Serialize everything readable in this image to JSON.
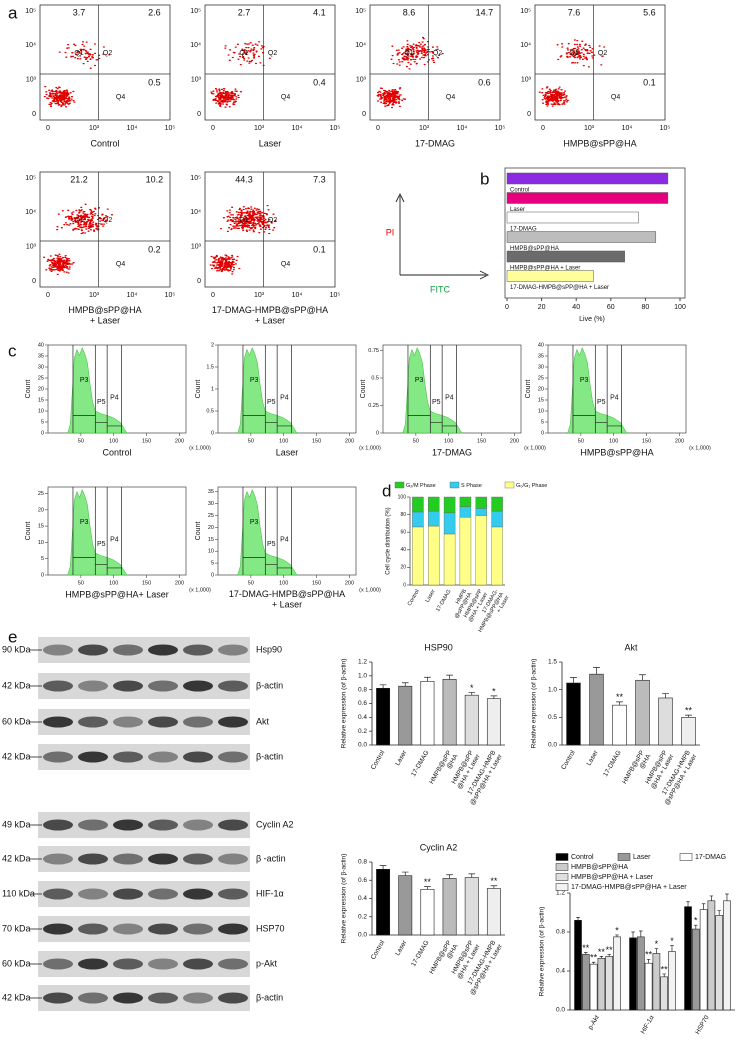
{
  "panel_labels": [
    "a",
    "b",
    "c",
    "d",
    "e"
  ],
  "flow": {
    "tick_labels": [
      "0",
      "10³",
      "10⁴",
      "10⁵"
    ],
    "quadrant_names": [
      "Q1",
      "Q2",
      "Q4"
    ],
    "samples": [
      {
        "label": "Control",
        "q1": 3.7,
        "q2": 2.6,
        "q4": 0.5
      },
      {
        "label": "Laser",
        "q1": 2.7,
        "q2": 4.1,
        "q4": 0.4
      },
      {
        "label": "17-DMAG",
        "q1": 8.6,
        "q2": 14.7,
        "q4": 0.6
      },
      {
        "label": "HMPB@sPP@HA",
        "q1": 7.6,
        "q2": 5.6,
        "q4": 0.1
      },
      {
        "label": "HMPB@sPP@HA\n+ Laser",
        "q1": 21.2,
        "q2": 10.2,
        "q4": 0.2
      },
      {
        "label": "17-DMAG-HMPB@sPP@HA\n+ Laser",
        "q1": 44.3,
        "q2": 7.3,
        "q4": 0.1
      }
    ]
  },
  "axes_key": {
    "y": "PI",
    "x": "FITC"
  },
  "cell_cycle_histograms": {
    "ylabel": "Count",
    "xunit": "(x 1,000)",
    "gates": [
      "P3",
      "P5",
      "P4"
    ],
    "xlim": [
      0,
      210
    ],
    "xticks": [
      50,
      100,
      150,
      200
    ],
    "samples": [
      {
        "label": "Control",
        "ylim": [
          0,
          40
        ],
        "yticks": [
          0,
          5,
          10,
          15,
          20,
          25,
          30,
          35,
          40
        ]
      },
      {
        "label": "Laser",
        "ylim": [
          0,
          2
        ],
        "yticks": [
          0,
          0.5,
          1,
          1.5,
          2
        ]
      },
      {
        "label": "17-DMAG",
        "ylim": [
          0,
          0.8
        ],
        "yticks": [
          0,
          0.25,
          0.5,
          0.75
        ]
      },
      {
        "label": "HMPB@sPP@HA",
        "ylim": [
          0,
          40
        ],
        "yticks": [
          0,
          5,
          10,
          15,
          20,
          25,
          30,
          35,
          40
        ]
      },
      {
        "label": "HMPB@sPP@HA+ Laser",
        "ylim": [
          0,
          27
        ],
        "yticks": [
          0,
          5,
          10,
          15,
          20,
          25
        ]
      },
      {
        "label": "17-DMAG-HMPB@sPP@HA\n+ Laser",
        "ylim": [
          0,
          37
        ],
        "yticks": [
          0,
          5,
          10,
          15,
          20,
          25,
          30,
          35
        ]
      }
    ]
  },
  "blots": [
    {
      "kda": "90 kDa",
      "protein": "Hsp90"
    },
    {
      "kda": "42 kDa",
      "protein": "β-actin"
    },
    {
      "kda": "60 kDa",
      "protein": "Akt"
    },
    {
      "kda": "42 kDa",
      "protein": "β-actin"
    },
    {
      "kda": "49 kDa",
      "protein": "Cyclin A2"
    },
    {
      "kda": "42 kDa",
      "protein": "β -actin"
    },
    {
      "kda": "110 kDa",
      "protein": "HIF-1α"
    },
    {
      "kda": "70 kDa",
      "protein": "HSP70"
    },
    {
      "kda": "60 kDa",
      "protein": "p-Akt"
    },
    {
      "kda": "42 kDa",
      "protein": "β-actin"
    }
  ],
  "chart_data": [
    {
      "type": "hbar",
      "xlabel": "Live (%)",
      "categories": [
        "Control",
        "Laser",
        "17-DMAG",
        "HMPB@sPP@HA",
        "HMPB@sPP@HA + Laser",
        "17-DMAG-HMPB@sPP@HA + Laser"
      ],
      "values": [
        93,
        93,
        76,
        86,
        68,
        50
      ],
      "colors": [
        "#8a2be2",
        "#e6007e",
        "#ffffff",
        "#bdbdbd",
        "#6b6b6b",
        "#ffff99"
      ],
      "xlim": [
        0,
        100
      ],
      "xticks": [
        0,
        20,
        40,
        60,
        80,
        100
      ]
    },
    {
      "type": "stacked",
      "ylabel": "Cell cycle distribution (%)",
      "categories": [
        "Control",
        "Laser",
        "17-DMAG",
        "HMPB\n@sPP@HA",
        "HMPB@sPP\n@HA + Laser",
        "17-DMAG-\nHMPB@sPP@HA\n+ Laser"
      ],
      "series": [
        {
          "name": "G₂/M Phase",
          "color": "#22cc22",
          "values": [
            17,
            16,
            18,
            11,
            13,
            16
          ]
        },
        {
          "name": "S Phase",
          "color": "#33ccee",
          "values": [
            17,
            17,
            24,
            12,
            8,
            18
          ]
        },
        {
          "name": "G₀/G₁ Phase",
          "color": "#ffff88",
          "values": [
            66,
            67,
            58,
            77,
            79,
            66
          ]
        }
      ],
      "ylim": [
        0,
        100
      ],
      "yticks": [
        0,
        20,
        40,
        60,
        80,
        100
      ]
    },
    {
      "type": "bar",
      "title": "HSP90",
      "ylabel": "Relative expression (of β-actin)",
      "categories": [
        "Control",
        "Laser",
        "17-DMAG",
        "HMPB@sPP\n@HA",
        "HMPB@sPP\n@HA + Laser",
        "17-DMAG-HMPB\n@sPP@HA + Laser"
      ],
      "values": [
        0.82,
        0.85,
        0.92,
        0.95,
        0.72,
        0.67
      ],
      "errors": [
        0.05,
        0.05,
        0.06,
        0.06,
        0.04,
        0.04
      ],
      "stars": [
        null,
        null,
        null,
        null,
        "*",
        "*"
      ],
      "colors": [
        "#000000",
        "#999999",
        "#ffffff",
        "#bbbbbb",
        "#dddddd",
        "#eeeeee"
      ],
      "ylim": [
        0,
        1.2
      ],
      "yticks": [
        {
          "value": 0,
          "label": "0.0"
        },
        0.2,
        0.4,
        0.6,
        0.8,
        {
          "value": 1,
          "label": "1.0"
        },
        1.2
      ]
    },
    {
      "type": "bar",
      "title": "Akt",
      "ylabel": "Relative expression (of β-actin)",
      "categories": [
        "Control",
        "Laser",
        "17-DMAG",
        "HMPB@sPP\n@HA",
        "HMPB@sPP\n@HA + Laser",
        "17-DMAG-HMPB\n@sPP@HA + Laser"
      ],
      "values": [
        1.12,
        1.28,
        0.72,
        1.17,
        0.85,
        0.5
      ],
      "errors": [
        0.1,
        0.12,
        0.06,
        0.1,
        0.08,
        0.04
      ],
      "stars": [
        null,
        null,
        "**",
        null,
        null,
        "**"
      ],
      "colors": [
        "#000000",
        "#999999",
        "#ffffff",
        "#bbbbbb",
        "#dddddd",
        "#eeeeee"
      ],
      "ylim": [
        0,
        1.5
      ],
      "yticks": [
        {
          "value": 0,
          "label": "0.0"
        },
        0.5,
        {
          "value": 1,
          "label": "1.0"
        },
        1.5
      ]
    },
    {
      "type": "bar",
      "title": "Cyclin A2",
      "ylabel": "Relative expression (of β-actin)",
      "categories": [
        "Control",
        "Laser",
        "17-DMAG",
        "HMPB@sPP\n@HA",
        "HMPB@sPP\n@HA + Laser",
        "17-DMAG-HMPB\n@sPP@HA + Laser"
      ],
      "values": [
        0.72,
        0.65,
        0.5,
        0.62,
        0.63,
        0.51
      ],
      "errors": [
        0.04,
        0.04,
        0.03,
        0.04,
        0.04,
        0.03
      ],
      "stars": [
        null,
        null,
        "**",
        null,
        null,
        "**"
      ],
      "colors": [
        "#000000",
        "#999999",
        "#ffffff",
        "#bbbbbb",
        "#dddddd",
        "#eeeeee"
      ],
      "ylim": [
        0,
        0.8
      ],
      "yticks": [
        {
          "value": 0,
          "label": "0.0"
        },
        0.2,
        0.4,
        0.6,
        0.8
      ]
    },
    {
      "type": "bar",
      "ylabel": "Relative expression (of β-actin)",
      "categories": [
        "p-Akt",
        "HIF-1α",
        "HSP70"
      ],
      "series": [
        {
          "name": "Control",
          "color": "#000000",
          "values": [
            0.92,
            0.74,
            1.06
          ],
          "errors": [
            0.03,
            0.06,
            0.05
          ],
          "stars": [
            null,
            null,
            null
          ]
        },
        {
          "name": "Laser",
          "color": "#999999",
          "values": [
            0.57,
            0.75,
            0.83
          ],
          "errors": [
            0.02,
            0.06,
            0.04
          ],
          "stars": [
            "**",
            null,
            "*"
          ]
        },
        {
          "name": "17-DMAG",
          "color": "#ffffff",
          "values": [
            0.47,
            0.48,
            1.03
          ],
          "errors": [
            0.02,
            0.04,
            0.06
          ],
          "stars": [
            "**",
            "**",
            null
          ]
        },
        {
          "name": "HMPB@sPP@HA",
          "color": "#cccccc",
          "values": [
            0.53,
            0.58,
            1.12
          ],
          "errors": [
            0.02,
            0.05,
            0.05
          ],
          "stars": [
            "**",
            "*",
            null
          ]
        },
        {
          "name": "HMPB@sPP@HA + Laser",
          "color": "#e0e0e0",
          "values": [
            0.55,
            0.34,
            0.97
          ],
          "errors": [
            0.02,
            0.03,
            0.05
          ],
          "stars": [
            "**",
            "**",
            null
          ]
        },
        {
          "name": "17-DMAG-HMPB@sPP@HA + Laser",
          "color": "#f2f2f2",
          "values": [
            0.75,
            0.6,
            1.12
          ],
          "errors": [
            0.02,
            0.06,
            0.07
          ],
          "stars": [
            "*",
            "*",
            null
          ]
        }
      ],
      "ylim": [
        0,
        1.2
      ],
      "yticks": [
        {
          "value": 0,
          "label": "0.0"
        },
        0.4,
        0.8,
        1.2
      ]
    }
  ]
}
